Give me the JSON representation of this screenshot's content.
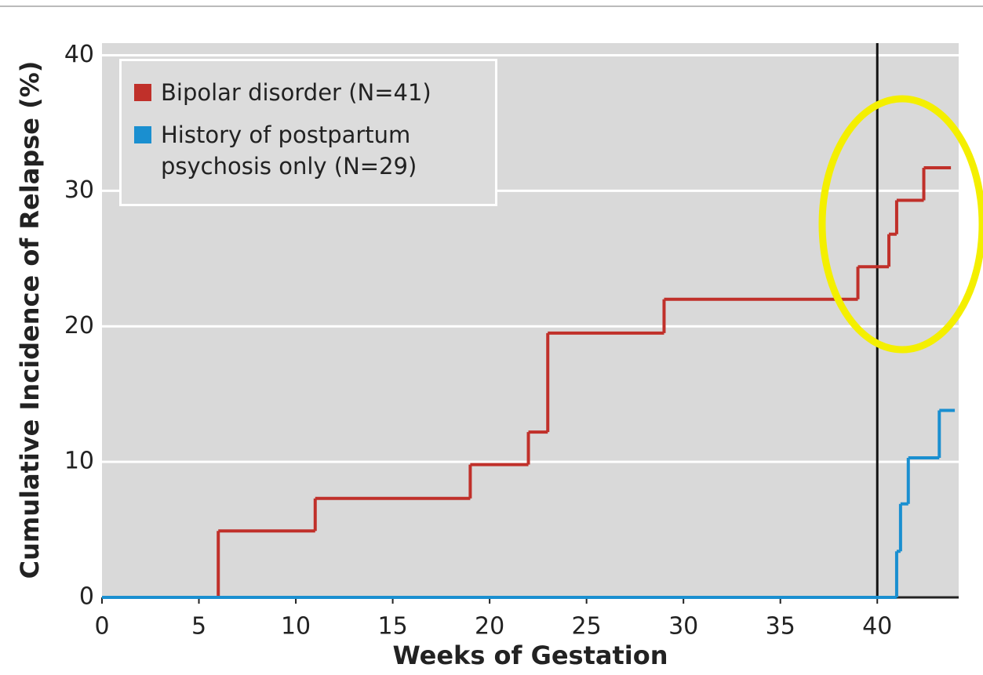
{
  "chart_data": {
    "type": "step",
    "y_label": "Cumulative Incidence of Relapse (%)",
    "x_label": "Weeks of Gestation",
    "xlim": [
      0,
      44.2
    ],
    "xticks": [
      0,
      5,
      10,
      15,
      20,
      25,
      30,
      35,
      40
    ],
    "ylim": [
      0,
      40.9
    ],
    "yticks": [
      0,
      10,
      20,
      30,
      40
    ],
    "grid": true,
    "vline": 40,
    "legend": "top-left",
    "series": [
      {
        "name": "Bipolar disorder (N=41)",
        "color": "#c0302a",
        "x": [
          0,
          6,
          11,
          19,
          22,
          23,
          29,
          39,
          40.6,
          41,
          42.4,
          43.8
        ],
        "values": [
          0,
          4.9,
          7.3,
          9.8,
          12.2,
          19.5,
          22,
          24.4,
          26.8,
          29.3,
          31.7,
          31.7
        ]
      },
      {
        "name": "History of postpartum psychosis only (N=29)",
        "color": "#1a8fd0",
        "x": [
          0,
          41,
          41.2,
          41.6,
          43.2,
          44
        ],
        "values": [
          0,
          3.4,
          6.9,
          10.3,
          13.8,
          13.8
        ]
      }
    ]
  }
}
